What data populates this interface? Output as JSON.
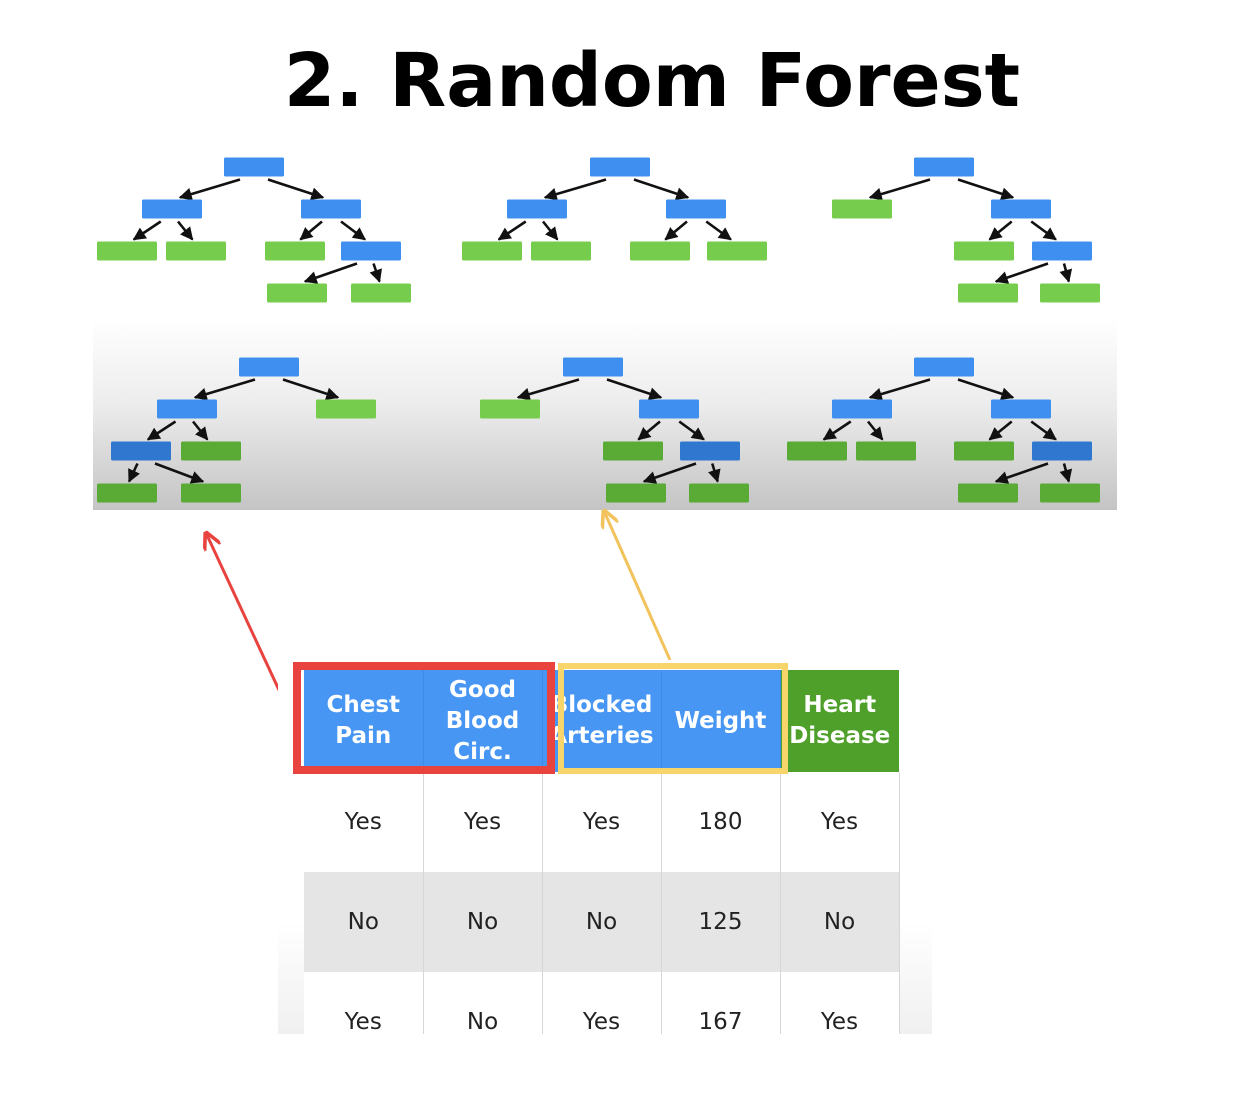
{
  "title": "2. Random Forest",
  "colors": {
    "split_node": "#3f8ff0",
    "leaf_node": "#76cc4c",
    "feature_header": "#4796f3",
    "target_header": "#4ea02a",
    "red_highlight": "#e8433f",
    "yellow_highlight": "#f7d56a"
  },
  "forest": {
    "trees_shown": 6
  },
  "table": {
    "headers": [
      {
        "lines": [
          "Chest",
          "Pain"
        ],
        "kind": "feature"
      },
      {
        "lines": [
          "Good",
          "Blood",
          "Circ."
        ],
        "kind": "feature"
      },
      {
        "lines": [
          "Blocked",
          "Arteries"
        ],
        "kind": "feature"
      },
      {
        "lines": [
          "Weight"
        ],
        "kind": "feature"
      },
      {
        "lines": [
          "Heart",
          "Disease"
        ],
        "kind": "target"
      }
    ],
    "rows": [
      [
        "Yes",
        "Yes",
        "Yes",
        "180",
        "Yes"
      ],
      [
        "No",
        "No",
        "No",
        "125",
        "No"
      ],
      [
        "Yes",
        "No",
        "Yes",
        "167",
        "Yes"
      ]
    ]
  },
  "highlights": {
    "red_group": [
      "Chest Pain",
      "Good Blood Circ."
    ],
    "yellow_group": [
      "Blocked Arteries",
      "Weight"
    ]
  }
}
